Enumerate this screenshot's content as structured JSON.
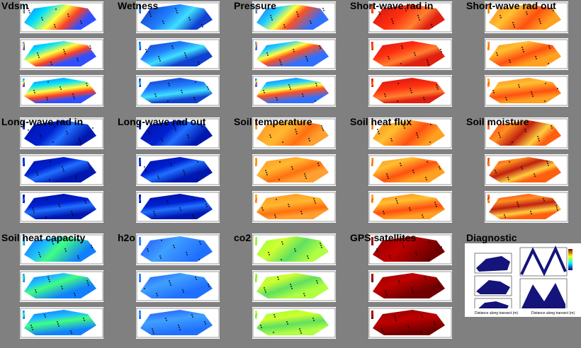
{
  "panels": [
    {
      "title": "Vdsm",
      "palette": "jet_mixed"
    },
    {
      "title": "Wetness",
      "palette": "blue_mid"
    },
    {
      "title": "Pressure",
      "palette": "diagonal_band"
    },
    {
      "title": "Short-wave rad in",
      "palette": "red_hot"
    },
    {
      "title": "Short-wave rad out",
      "palette": "orange_red"
    },
    {
      "title": "Long-wave rad in",
      "palette": "blue_deep"
    },
    {
      "title": "Long-wave rad out",
      "palette": "blue_deep"
    },
    {
      "title": "Soil temperature",
      "palette": "orange"
    },
    {
      "title": "Soil heat flux",
      "palette": "orange_red"
    },
    {
      "title": "Soil moisture",
      "palette": "red_green"
    },
    {
      "title": "Soil heat capacity",
      "palette": "cyan_green"
    },
    {
      "title": "h2o",
      "palette": "blue_light"
    },
    {
      "title": "co2",
      "palette": "green_yellow"
    },
    {
      "title": "GPS satellites",
      "palette": "dark_red"
    }
  ],
  "diagnostic": {
    "title": "Diagnostic",
    "xlabel_left": "Distance along transect (m)",
    "xlabel_right": "Distance along transect (m)",
    "colors": {
      "fill": "#14147a",
      "line": "#000000"
    }
  }
}
